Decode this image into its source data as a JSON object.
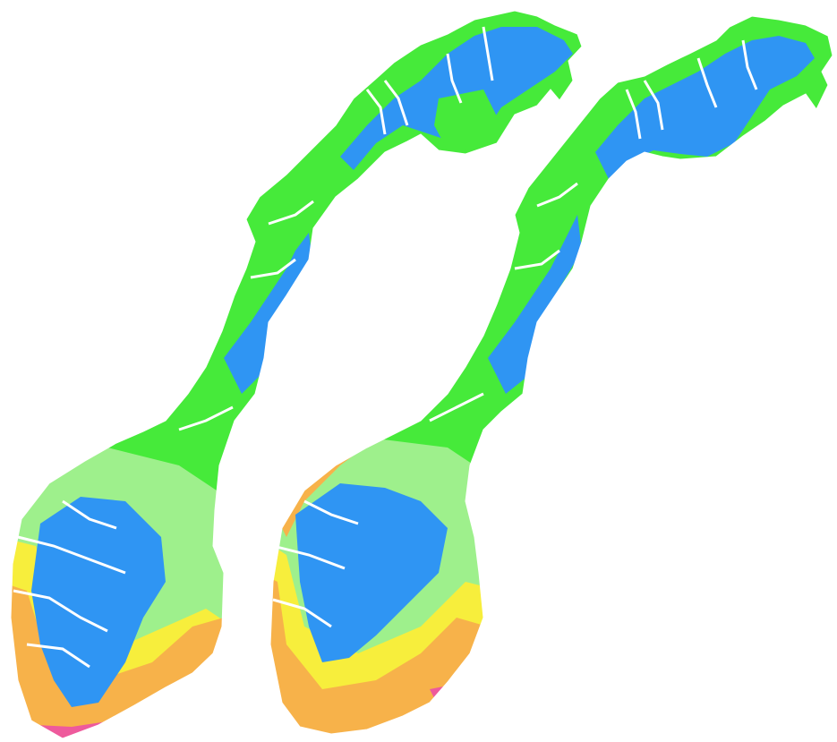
{
  "map": {
    "panels": [
      {
        "id": "left"
      },
      {
        "id": "right"
      }
    ],
    "palette": {
      "blue": "#2f95f3",
      "green": "#46ea3a",
      "light_green": "#9ef08c",
      "yellow": "#f7ee3c",
      "orange": "#f7b24a",
      "pink": "#ee5a9c",
      "fjord_white": "#ffffff"
    }
  }
}
